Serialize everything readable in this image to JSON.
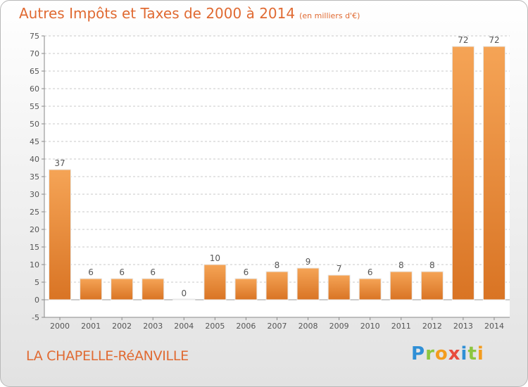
{
  "title": {
    "main": "Autres Impôts et Taxes de 2000 à 2014",
    "unit": "(en milliers d'€)"
  },
  "location_name": "LA CHAPELLE-RéANVILLE",
  "logo": {
    "text": "Proxiti",
    "letters": [
      "P",
      "r",
      "o",
      "x",
      "i",
      "t",
      "i"
    ],
    "colors": [
      "#2f8fd6",
      "#8cc63f",
      "#f39c1e",
      "#e84c3d",
      "#2f8fd6",
      "#8cc63f",
      "#f39c1e"
    ]
  },
  "colors": {
    "accent": "#e06a32",
    "bar_light": "#f5a456",
    "bar_dark": "#d97424"
  },
  "chart_data": {
    "type": "bar",
    "categories": [
      "2000",
      "2001",
      "2002",
      "2003",
      "2004",
      "2005",
      "2006",
      "2007",
      "2008",
      "2009",
      "2010",
      "2011",
      "2012",
      "2013",
      "2014"
    ],
    "values": [
      37,
      6,
      6,
      6,
      0,
      10,
      6,
      8,
      9,
      7,
      6,
      8,
      8,
      72,
      72
    ],
    "ylim": [
      -5,
      75
    ],
    "yticks": [
      -5,
      0,
      5,
      10,
      15,
      20,
      25,
      30,
      35,
      40,
      45,
      50,
      55,
      60,
      65,
      70,
      75
    ],
    "grid": "horizontal dashed",
    "xlabel": "",
    "ylabel": ""
  }
}
